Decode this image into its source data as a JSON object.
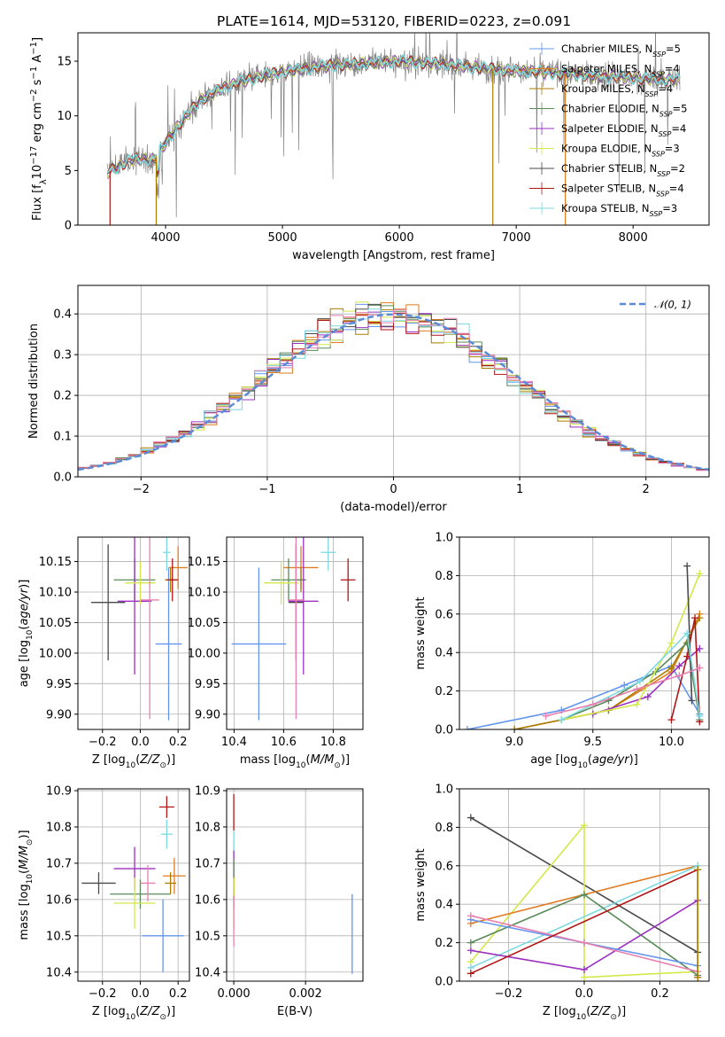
{
  "figure": {
    "title": "PLATE=1614, MJD=53120, FIBERID=0223, z=0.091",
    "colors": [
      "#6495ed",
      "#e07b20",
      "#a87d00",
      "#5a8a5a",
      "#9b30c0",
      "#d4e84a",
      "#4a4a4a",
      "#b01515",
      "#7dd8e0"
    ],
    "hl_pink": "#e87fb0"
  },
  "chart_data": [
    {
      "id": "spectrum",
      "type": "line",
      "title": "PLATE=1614, MJD=53120, FIBERID=0223, z=0.091",
      "xlabel": "wavelength [Angstrom, rest frame]",
      "ylabel": "Flux [f_λ 10^-17 erg cm^-2 s^-1 A^-1]",
      "xlim": [
        3250,
        8650
      ],
      "ylim": [
        0,
        17.6
      ],
      "xticks": [
        4000,
        5000,
        6000,
        7000,
        8000
      ],
      "yticks": [
        0,
        5,
        10,
        15
      ],
      "grid": false,
      "legend": "top-right",
      "series_names": [
        "Chabrier MILES, N_SSP=5",
        "Salpeter MILES, N_SSP=4",
        "Kroupa MILES, N_SSP=4",
        "Chabrier ELODIE, N_SSP=5",
        "Salpeter ELODIE, N_SSP=4",
        "Kroupa ELODIE, N_SSP=3",
        "Chabrier STELIB, N_SSP=2",
        "Salpeter STELIB, N_SSP=4",
        "Kroupa STELIB, N_SSP=3"
      ],
      "continuum": {
        "x": [
          3500,
          3700,
          3900,
          4100,
          4300,
          4500,
          4800,
          5100,
          5400,
          5700,
          6000,
          6300,
          6600,
          6900,
          7200,
          7500,
          7800,
          8100,
          8400
        ],
        "y": [
          4.8,
          6.0,
          6.0,
          9.0,
          11.5,
          12.6,
          13.6,
          14.2,
          14.6,
          14.8,
          15.0,
          14.8,
          14.5,
          14.2,
          14.0,
          13.8,
          13.6,
          13.4,
          13.3
        ]
      }
    },
    {
      "id": "residuals",
      "type": "histogram",
      "xlabel": "(data-model)/error",
      "ylabel": "Normed distribution",
      "xlim": [
        -2.5,
        2.5
      ],
      "ylim": [
        0,
        0.47
      ],
      "xticks": [
        -2,
        -1,
        0,
        1,
        2
      ],
      "yticks": [
        0.0,
        0.1,
        0.2,
        0.3,
        0.4
      ],
      "grid": true,
      "legend": "top-right",
      "reference_curve": "N(0,1)",
      "bin_width": 0.1
    },
    {
      "id": "age_vs_Z",
      "type": "scatter",
      "xlabel": "Z [log10(Z/Z⊙)]",
      "ylabel": "age [log10(age/yr)]",
      "xlim": [
        -0.33,
        0.26
      ],
      "ylim": [
        9.875,
        10.19
      ],
      "xticks": [
        -0.2,
        0.0,
        0.2
      ],
      "yticks": [
        9.9,
        9.95,
        10.0,
        10.05,
        10.1,
        10.15
      ],
      "grid": true,
      "points": [
        {
          "x": 0.15,
          "y": 10.015,
          "xerr": 0.07,
          "yerr": 0.125,
          "color": "#6495ed"
        },
        {
          "x": 0.2,
          "y": 10.14,
          "xerr": 0.05,
          "yerr": 0.035,
          "color": "#e07b20"
        },
        {
          "x": 0.16,
          "y": 10.12,
          "xerr": 0.03,
          "yerr": 0.02,
          "color": "#a87d00"
        },
        {
          "x": -0.03,
          "y": 10.12,
          "xerr": 0.11,
          "yerr": 0.035,
          "color": "#5a8a5a"
        },
        {
          "x": -0.03,
          "y": 10.085,
          "xerr": 0.09,
          "yerr": 0.12,
          "color": "#9b30c0"
        },
        {
          "x": 0.0,
          "y": 10.115,
          "xerr": 0.08,
          "yerr": 0.035,
          "color": "#d4e84a"
        },
        {
          "x": -0.17,
          "y": 10.083,
          "xerr": 0.09,
          "yerr": 0.095,
          "color": "#4a4a4a"
        },
        {
          "x": 0.17,
          "y": 10.12,
          "xerr": 0.03,
          "yerr": 0.035,
          "color": "#b01515"
        },
        {
          "x": 0.14,
          "y": 10.165,
          "xerr": 0.02,
          "yerr": 0.03,
          "color": "#7dd8e0"
        },
        {
          "x": 0.05,
          "y": 10.087,
          "xerr": 0.05,
          "yerr": 0.195,
          "color": "#e87fb0"
        }
      ]
    },
    {
      "id": "age_vs_mass",
      "type": "scatter",
      "xlabel": "mass [log10(M/M⊙)]",
      "ylabel": "",
      "xlim": [
        10.37,
        10.92
      ],
      "ylim": [
        9.875,
        10.19
      ],
      "xticks": [
        10.4,
        10.6,
        10.8
      ],
      "yticks": [
        9.9,
        9.95,
        10.0,
        10.05,
        10.1,
        10.15
      ],
      "grid": true,
      "points": [
        {
          "x": 10.5,
          "y": 10.015,
          "xerr": 0.11,
          "yerr": 0.125,
          "color": "#6495ed"
        },
        {
          "x": 10.67,
          "y": 10.14,
          "xerr": 0.07,
          "yerr": 0.035,
          "color": "#e07b20"
        },
        {
          "x": 10.67,
          "y": 10.12,
          "xerr": 0.02,
          "yerr": 0.02,
          "color": "#a87d00"
        },
        {
          "x": 10.62,
          "y": 10.12,
          "xerr": 0.07,
          "yerr": 0.035,
          "color": "#5a8a5a"
        },
        {
          "x": 10.68,
          "y": 10.085,
          "xerr": 0.06,
          "yerr": 0.12,
          "color": "#9b30c0"
        },
        {
          "x": 10.59,
          "y": 10.115,
          "xerr": 0.07,
          "yerr": 0.035,
          "color": "#d4e84a"
        },
        {
          "x": 10.65,
          "y": 10.083,
          "xerr": 0.03,
          "yerr": 0.095,
          "color": "#4a4a4a"
        },
        {
          "x": 10.86,
          "y": 10.12,
          "xerr": 0.03,
          "yerr": 0.035,
          "color": "#b01515"
        },
        {
          "x": 10.78,
          "y": 10.165,
          "xerr": 0.03,
          "yerr": 0.03,
          "color": "#7dd8e0"
        },
        {
          "x": 10.65,
          "y": 10.087,
          "xerr": 0.03,
          "yerr": 0.195,
          "color": "#e87fb0"
        }
      ]
    },
    {
      "id": "weight_vs_age",
      "type": "line",
      "xlabel": "age [log10(age/yr)]",
      "ylabel": "mass weight",
      "xlim": [
        8.65,
        10.24
      ],
      "ylim": [
        0,
        1.0
      ],
      "xticks": [
        9.0,
        9.5,
        10.0
      ],
      "yticks": [
        0.0,
        0.2,
        0.4,
        0.6,
        0.8,
        1.0
      ],
      "grid": true,
      "series": [
        {
          "color": "#6495ed",
          "x": [
            8.7,
            9.3,
            9.7,
            10.0,
            10.18
          ],
          "y": [
            0.0,
            0.1,
            0.23,
            0.33,
            0.08
          ]
        },
        {
          "color": "#e07b20",
          "x": [
            9.0,
            9.6,
            10.0,
            10.18
          ],
          "y": [
            0.0,
            0.1,
            0.3,
            0.6
          ]
        },
        {
          "color": "#a87d00",
          "x": [
            9.0,
            9.6,
            10.0,
            10.18
          ],
          "y": [
            0.0,
            0.1,
            0.32,
            0.58
          ]
        },
        {
          "color": "#5a8a5a",
          "x": [
            9.3,
            9.6,
            9.9,
            10.1,
            10.18
          ],
          "y": [
            0.05,
            0.15,
            0.3,
            0.45,
            0.05
          ]
        },
        {
          "color": "#9b30c0",
          "x": [
            9.5,
            9.85,
            10.05,
            10.18
          ],
          "y": [
            0.08,
            0.17,
            0.33,
            0.42
          ]
        },
        {
          "color": "#d4e84a",
          "x": [
            9.3,
            9.78,
            10.0,
            10.18
          ],
          "y": [
            0.05,
            0.13,
            0.45,
            0.81
          ]
        },
        {
          "color": "#4a4a4a",
          "x": [
            10.1,
            10.13
          ],
          "y": [
            0.85,
            0.15
          ]
        },
        {
          "color": "#b01515",
          "x": [
            10.0,
            10.1,
            10.15,
            10.18
          ],
          "y": [
            0.05,
            0.38,
            0.58,
            0.04
          ]
        },
        {
          "color": "#7dd8e0",
          "x": [
            9.3,
            9.8,
            10.1,
            10.18
          ],
          "y": [
            0.05,
            0.25,
            0.5,
            0.07
          ]
        },
        {
          "color": "#e87fb0",
          "x": [
            9.2,
            9.5,
            9.78,
            10.05,
            10.18
          ],
          "y": [
            0.07,
            0.13,
            0.21,
            0.28,
            0.32
          ]
        }
      ]
    },
    {
      "id": "mass_vs_Z",
      "type": "scatter",
      "xlabel": "Z [log10(Z/Z⊙)]",
      "ylabel": "mass [log10(M/M⊙)]",
      "xlim": [
        -0.33,
        0.26
      ],
      "ylim": [
        10.375,
        10.905
      ],
      "xticks": [
        -0.2,
        0.0,
        0.2
      ],
      "yticks": [
        10.4,
        10.5,
        10.6,
        10.7,
        10.8,
        10.9
      ],
      "grid": true,
      "points": [
        {
          "x": 0.12,
          "y": 10.5,
          "xerr": 0.11,
          "yerr": 0.1,
          "color": "#6495ed"
        },
        {
          "x": 0.18,
          "y": 10.665,
          "xerr": 0.06,
          "yerr": 0.05,
          "color": "#e07b20"
        },
        {
          "x": 0.16,
          "y": 10.645,
          "xerr": 0.03,
          "yerr": 0.03,
          "color": "#a87d00"
        },
        {
          "x": 0.0,
          "y": 10.615,
          "xerr": 0.16,
          "yerr": 0.04,
          "color": "#5a8a5a"
        },
        {
          "x": -0.03,
          "y": 10.685,
          "xerr": 0.11,
          "yerr": 0.06,
          "color": "#9b30c0"
        },
        {
          "x": -0.03,
          "y": 10.59,
          "xerr": 0.11,
          "yerr": 0.07,
          "color": "#d4e84a"
        },
        {
          "x": -0.22,
          "y": 10.645,
          "xerr": 0.09,
          "yerr": 0.03,
          "color": "#4a4a4a"
        },
        {
          "x": 0.14,
          "y": 10.855,
          "xerr": 0.04,
          "yerr": 0.03,
          "color": "#b01515"
        },
        {
          "x": 0.14,
          "y": 10.78,
          "xerr": 0.03,
          "yerr": 0.04,
          "color": "#7dd8e0"
        },
        {
          "x": 0.04,
          "y": 10.645,
          "xerr": 0.04,
          "yerr": 0.05,
          "color": "#e87fb0"
        }
      ]
    },
    {
      "id": "mass_vs_ebv",
      "type": "scatter",
      "xlabel": "E(B-V)",
      "ylabel": "",
      "xlim": [
        -0.0002,
        0.0036
      ],
      "ylim": [
        10.375,
        10.905
      ],
      "xticks": [
        0.0,
        0.002
      ],
      "yticks": [
        10.4,
        10.5,
        10.6,
        10.7,
        10.8,
        10.9
      ],
      "grid": true,
      "points": [
        {
          "x": 0.0,
          "y": 10.84,
          "yerr": 0.05,
          "color": "#b01515"
        },
        {
          "x": 0.0,
          "y": 10.755,
          "yerr": 0.035,
          "color": "#7dd8e0"
        },
        {
          "x": 0.0,
          "y": 10.655,
          "yerr": 0.08,
          "color": "#9b30c0"
        },
        {
          "x": 0.0,
          "y": 10.66,
          "yerr": 0.05,
          "color": "#5a8a5a"
        },
        {
          "x": 0.0,
          "y": 10.63,
          "yerr": 0.03,
          "color": "#a87d00"
        },
        {
          "x": 0.0,
          "y": 10.59,
          "yerr": 0.07,
          "color": "#d4e84a"
        },
        {
          "x": 0.0,
          "y": 10.54,
          "yerr": 0.07,
          "color": "#e87fb0"
        },
        {
          "x": 0.0033,
          "y": 10.505,
          "yerr": 0.11,
          "color": "#6495ed"
        }
      ]
    },
    {
      "id": "weight_vs_Z",
      "type": "line",
      "xlabel": "Z [log10(Z/Z⊙)]",
      "ylabel": "mass weight",
      "xlim": [
        -0.33,
        0.33
      ],
      "ylim": [
        0,
        1.0
      ],
      "xticks": [
        -0.2,
        0.0,
        0.2
      ],
      "yticks": [
        0.0,
        0.2,
        0.4,
        0.6,
        0.8,
        1.0
      ],
      "grid": true,
      "series": [
        {
          "color": "#4a4a4a",
          "x": [
            -0.3,
            0.3
          ],
          "y": [
            0.85,
            0.15
          ]
        },
        {
          "color": "#d4e84a",
          "x": [
            -0.3,
            0.0,
            0.0,
            0.3
          ],
          "y": [
            0.1,
            0.81,
            0.02,
            0.05
          ]
        },
        {
          "color": "#e07b20",
          "x": [
            -0.3,
            0.3
          ],
          "y": [
            0.3,
            0.6
          ]
        },
        {
          "color": "#7dd8e0",
          "x": [
            -0.3,
            0.3
          ],
          "y": [
            0.07,
            0.6
          ]
        },
        {
          "color": "#5a8a5a",
          "x": [
            -0.3,
            0.0,
            0.3
          ],
          "y": [
            0.2,
            0.45,
            0.03
          ]
        },
        {
          "color": "#9b30c0",
          "x": [
            -0.3,
            0.0,
            0.3
          ],
          "y": [
            0.16,
            0.06,
            0.42
          ]
        },
        {
          "color": "#6495ed",
          "x": [
            -0.3,
            0.0,
            0.3
          ],
          "y": [
            0.32,
            0.2,
            0.08
          ]
        },
        {
          "color": "#e87fb0",
          "x": [
            -0.3,
            0.0,
            0.3
          ],
          "y": [
            0.34,
            0.2,
            0.05
          ]
        },
        {
          "color": "#b01515",
          "x": [
            -0.3,
            0.3,
            0.3
          ],
          "y": [
            0.04,
            0.58,
            0.02
          ]
        },
        {
          "color": "#a87d00",
          "x": [
            0.3,
            0.3
          ],
          "y": [
            0.58,
            0.02
          ]
        }
      ]
    }
  ]
}
